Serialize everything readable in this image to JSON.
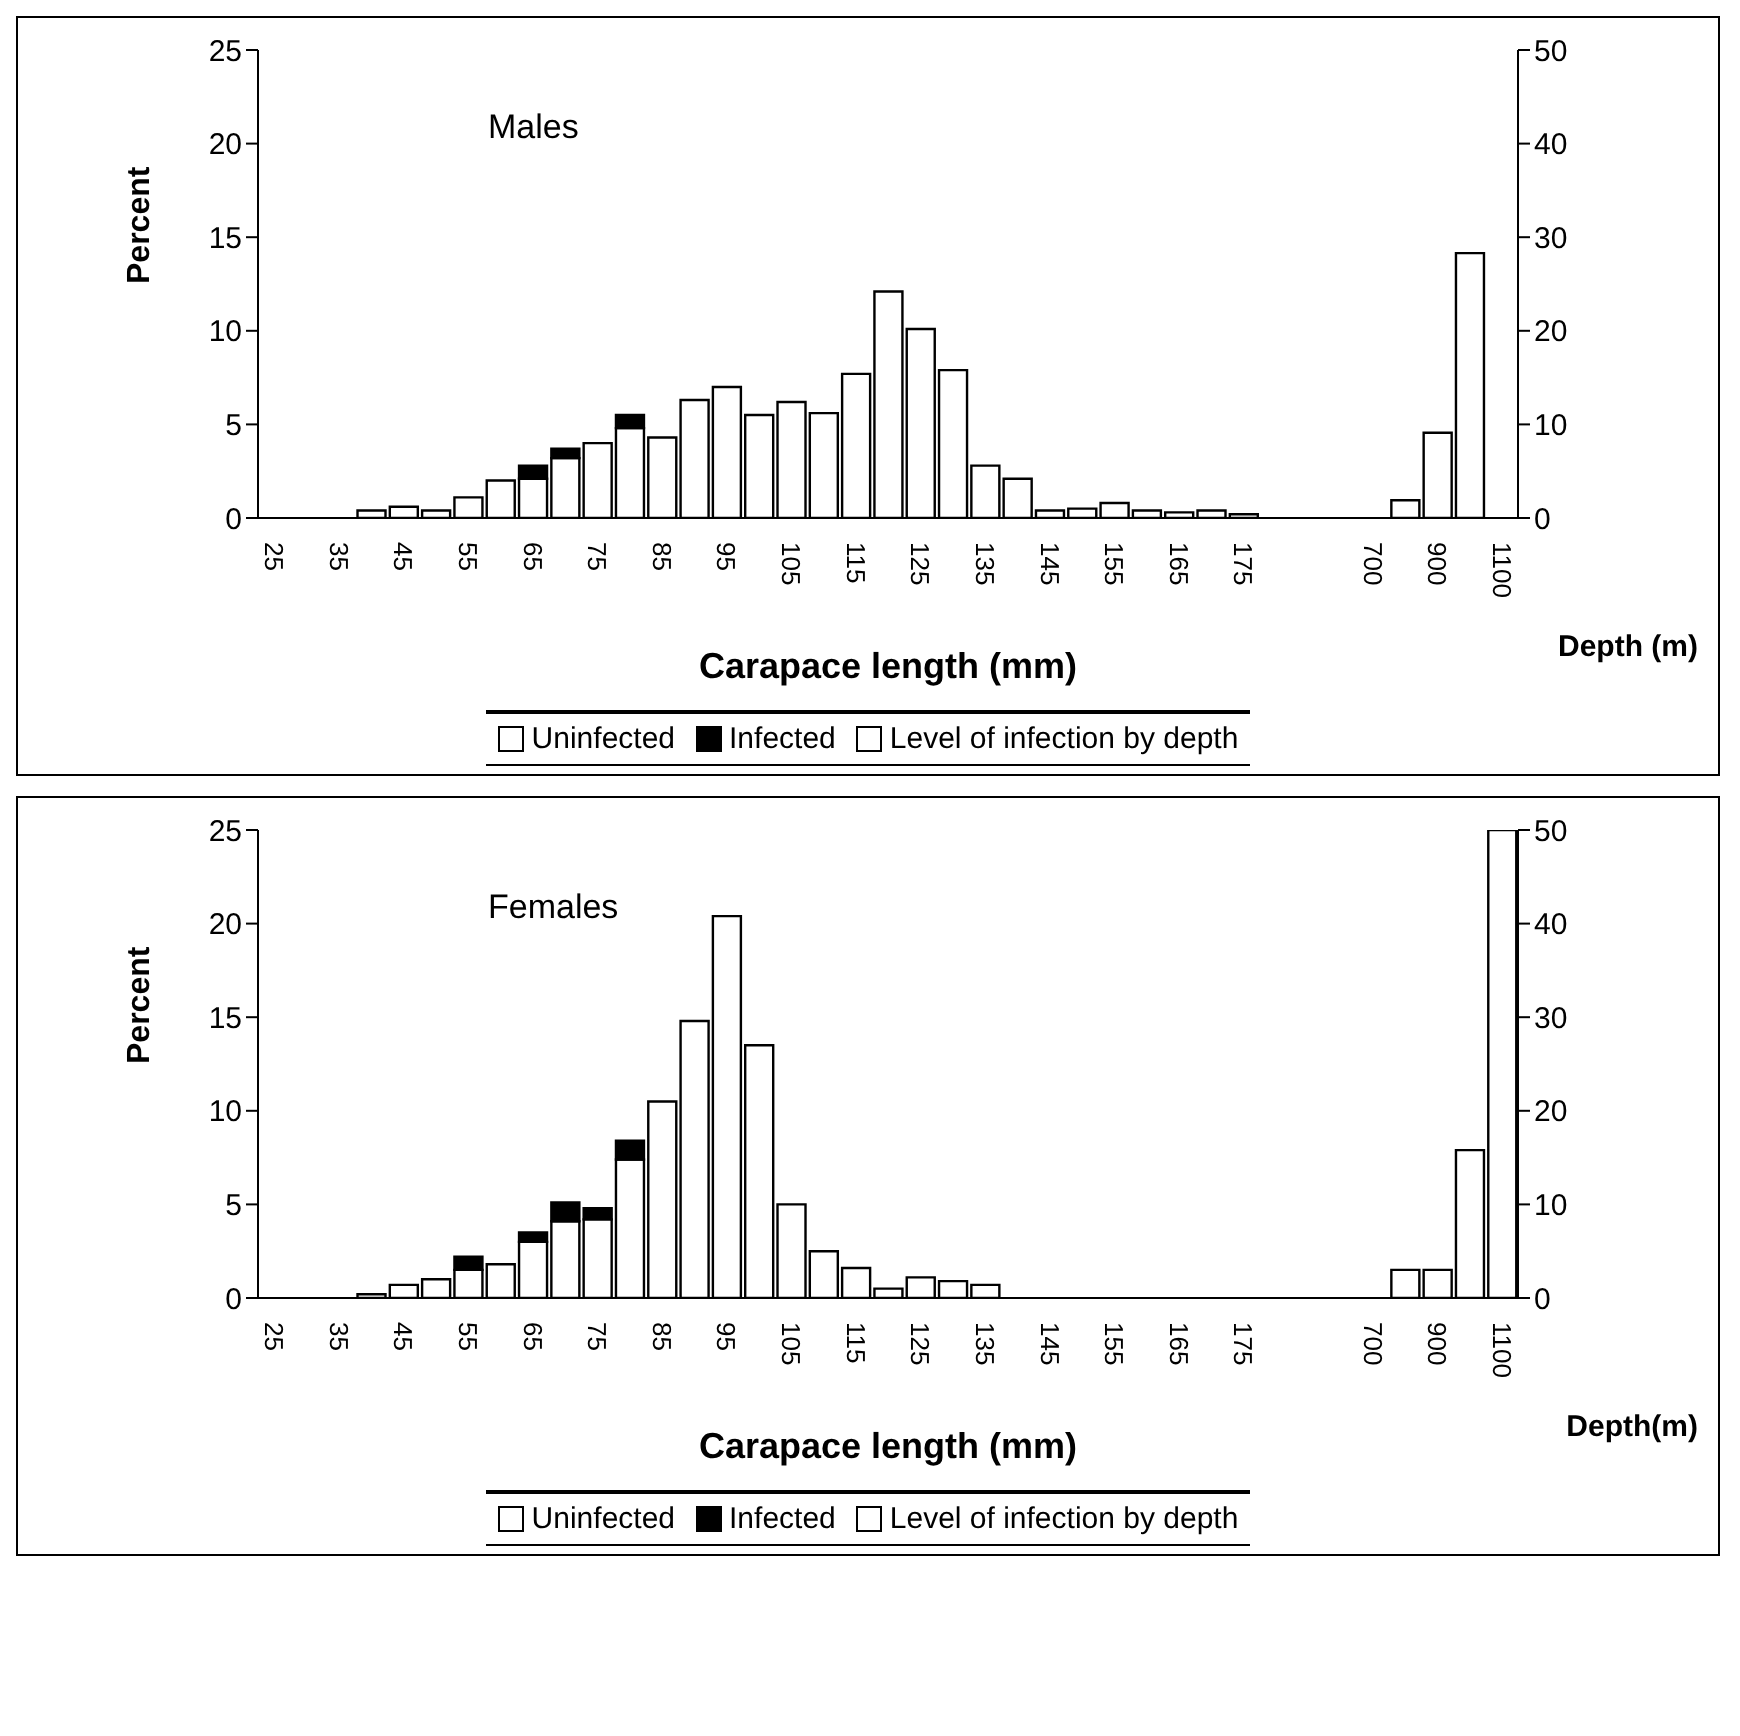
{
  "chart_data": [
    {
      "type": "bar",
      "stacked": true,
      "legend": "bottom",
      "ylabel": "Percent",
      "xlabel": "Carapace length (mm)",
      "annotations": [
        "Males",
        "Depth (m)"
      ],
      "categories": [
        "25",
        null,
        "35",
        null,
        "45",
        null,
        "55",
        null,
        "65",
        null,
        "75",
        null,
        "85",
        null,
        "95",
        null,
        "105",
        null,
        "115",
        null,
        "125",
        null,
        "135",
        null,
        "145",
        null,
        "155",
        null,
        "165",
        null,
        "175",
        null,
        null,
        null,
        "700",
        null,
        "900",
        null,
        "1100"
      ],
      "ylim": [
        0,
        25
      ],
      "yticks": [
        0,
        5,
        10,
        15,
        20,
        25
      ],
      "y2lim": [
        0,
        50
      ],
      "y2ticks": [
        0,
        10,
        20,
        30,
        40,
        50
      ],
      "series": [
        {
          "name": "Uninfected",
          "color": "#ffffff",
          "values": [
            null,
            null,
            null,
            0.4,
            0.6,
            0.4,
            1.1,
            2,
            2.1,
            3.2,
            4,
            4.8,
            4.3,
            6.3,
            7,
            5.5,
            6.2,
            5.6,
            7.7,
            12.1,
            10.1,
            7.9,
            2.8,
            2.1,
            0.4,
            0.5,
            0.8,
            0.4,
            0.3,
            0.4,
            0.2,
            null,
            null,
            null,
            null,
            null,
            null,
            null,
            null
          ]
        },
        {
          "name": "Infected",
          "color": "#000000",
          "values": [
            null,
            null,
            null,
            null,
            null,
            null,
            null,
            null,
            0.7,
            0.5,
            null,
            0.7,
            null,
            null,
            null,
            null,
            null,
            null,
            null,
            null,
            null,
            null,
            null,
            null,
            null,
            null,
            null,
            null,
            null,
            null,
            null,
            null,
            null,
            null,
            null,
            null,
            null,
            null,
            null
          ]
        },
        {
          "name": "Level of infection by depth",
          "color": "#ffffff",
          "axis": "y2",
          "values": [
            null,
            null,
            null,
            null,
            null,
            null,
            null,
            null,
            null,
            null,
            null,
            null,
            null,
            null,
            null,
            null,
            null,
            null,
            null,
            null,
            null,
            null,
            null,
            null,
            null,
            null,
            null,
            null,
            null,
            null,
            null,
            null,
            null,
            null,
            null,
            1.9,
            9.1,
            28.3,
            null
          ]
        }
      ]
    },
    {
      "type": "bar",
      "stacked": true,
      "legend": "bottom",
      "ylabel": "Percent",
      "xlabel": "Carapace length (mm)",
      "annotations": [
        "Females",
        "Depth(m)"
      ],
      "categories": [
        "25",
        null,
        "35",
        null,
        "45",
        null,
        "55",
        null,
        "65",
        null,
        "75",
        null,
        "85",
        null,
        "95",
        null,
        "105",
        null,
        "115",
        null,
        "125",
        null,
        "135",
        null,
        "145",
        null,
        "155",
        null,
        "165",
        null,
        "175",
        null,
        null,
        null,
        "700",
        null,
        "900",
        null,
        "1100"
      ],
      "ylim": [
        0,
        25
      ],
      "yticks": [
        0,
        5,
        10,
        15,
        20,
        25
      ],
      "y2lim": [
        0,
        50
      ],
      "y2ticks": [
        0,
        10,
        20,
        30,
        40,
        50
      ],
      "series": [
        {
          "name": "Uninfected",
          "color": "#ffffff",
          "values": [
            null,
            null,
            null,
            0.2,
            0.7,
            1,
            1.5,
            1.8,
            3,
            4.1,
            4.2,
            7.4,
            10.5,
            14.8,
            20.4,
            13.5,
            5,
            2.5,
            1.6,
            0.5,
            1.1,
            0.9,
            0.7,
            null,
            null,
            null,
            null,
            null,
            null,
            null,
            null,
            null,
            null,
            null,
            null,
            null,
            null,
            null,
            null
          ]
        },
        {
          "name": "Infected",
          "color": "#000000",
          "values": [
            null,
            null,
            null,
            null,
            null,
            null,
            0.7,
            null,
            0.5,
            1,
            0.6,
            1,
            null,
            null,
            null,
            null,
            null,
            null,
            null,
            null,
            null,
            null,
            null,
            null,
            null,
            null,
            null,
            null,
            null,
            null,
            null,
            null,
            null,
            null,
            null,
            null,
            null,
            null,
            null
          ]
        },
        {
          "name": "Level of infection by depth",
          "color": "#ffffff",
          "axis": "y2",
          "values": [
            null,
            null,
            null,
            null,
            null,
            null,
            null,
            null,
            null,
            null,
            null,
            null,
            null,
            null,
            null,
            null,
            null,
            null,
            null,
            null,
            null,
            null,
            null,
            null,
            null,
            null,
            null,
            null,
            null,
            null,
            null,
            null,
            null,
            null,
            null,
            3,
            3,
            15.8,
            50
          ]
        }
      ]
    }
  ]
}
